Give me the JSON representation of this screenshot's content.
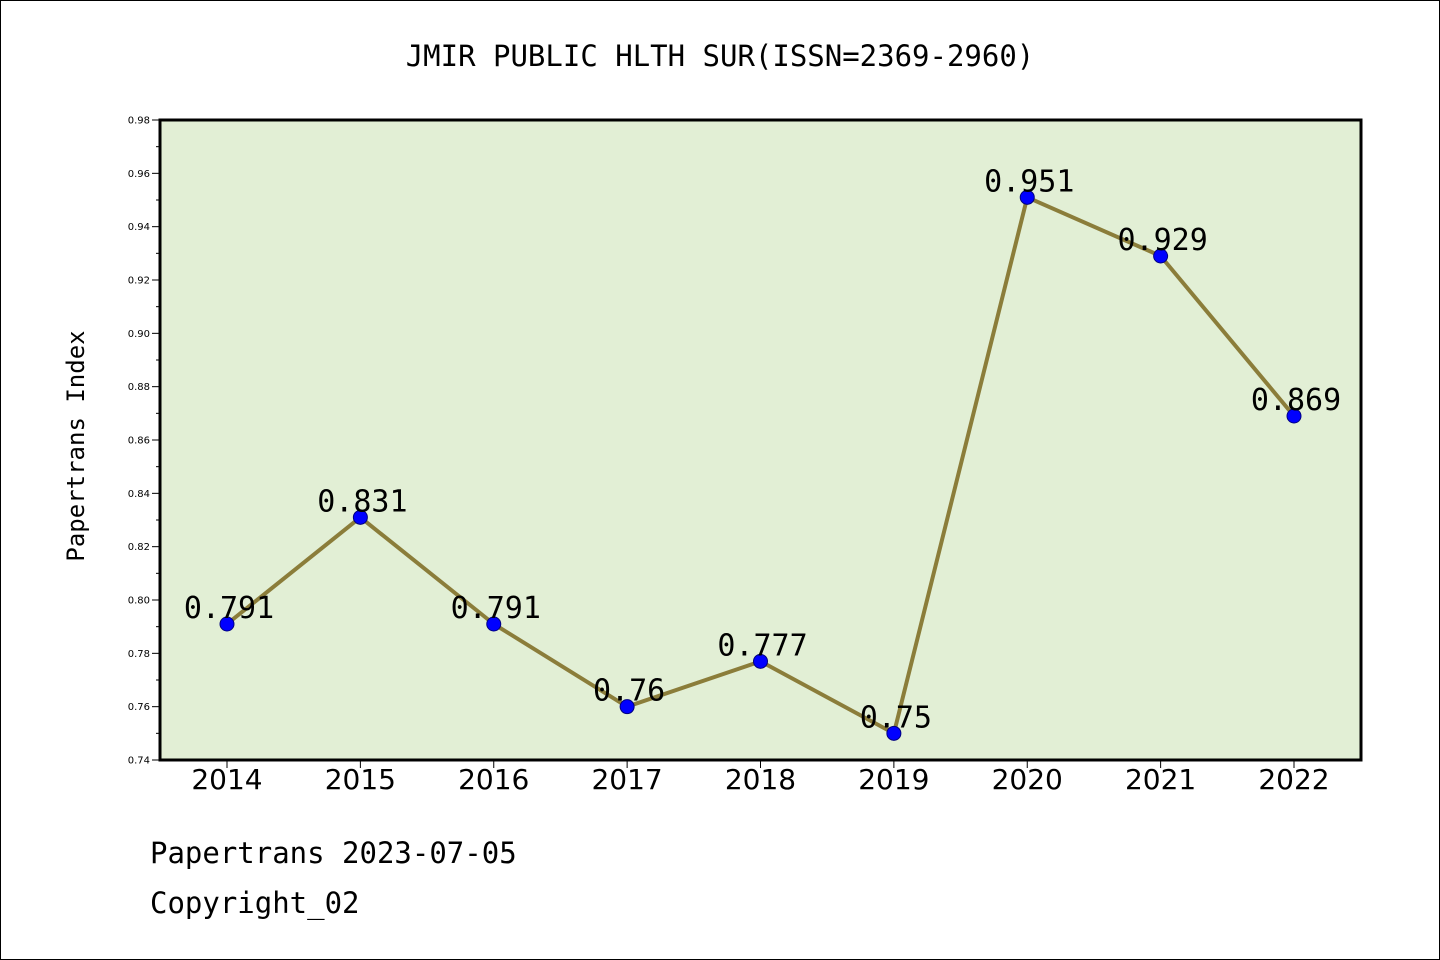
{
  "chart_data": {
    "type": "line",
    "title": "JMIR PUBLIC HLTH SUR(ISSN=2369-2960)",
    "xlabel": "",
    "ylabel": "Papertrans Index",
    "categories": [
      "2014",
      "2015",
      "2016",
      "2017",
      "2018",
      "2019",
      "2020",
      "2021",
      "2022"
    ],
    "series": [
      {
        "values": [
          0.791,
          0.831,
          0.791,
          0.76,
          0.777,
          0.75,
          0.951,
          0.929,
          0.869
        ],
        "labels": [
          "0.791",
          "0.831",
          "0.791",
          "0.76",
          "0.777",
          "0.75",
          "0.951",
          "0.929",
          "0.869"
        ]
      }
    ],
    "ylim": [
      0.74,
      0.98
    ],
    "yticks": [
      "0.74",
      "0.76",
      "0.78",
      "0.80",
      "0.82",
      "0.84",
      "0.86",
      "0.88",
      "0.90",
      "0.92",
      "0.94",
      "0.96",
      "0.98"
    ],
    "grid": false,
    "legend": "none",
    "colors": {
      "plot_background": "#e2efd5",
      "line": "#8b7d3a",
      "marker": "#0000ff",
      "marker_edge": "#000080"
    }
  },
  "footer": {
    "line1": "Papertrans 2023-07-05",
    "line2": "Copyright_02"
  }
}
